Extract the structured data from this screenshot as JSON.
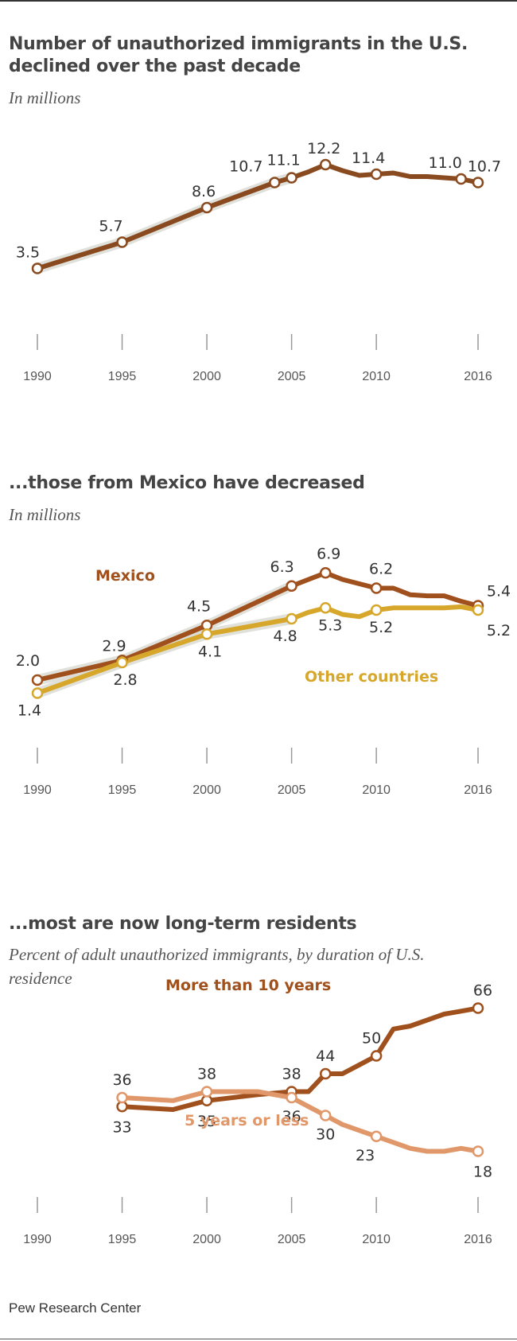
{
  "source": "Pew Research Center",
  "chart_data": [
    {
      "type": "line",
      "title": "Number of unauthorized immigrants in the U.S. declined over the past decade",
      "subtitle": "In millions",
      "x_ticks": [
        "1990",
        "1995",
        "2000",
        "2005",
        "2010",
        "2016"
      ],
      "xlim": [
        1990,
        2016
      ],
      "ylim": [
        0,
        14
      ],
      "series": [
        {
          "color": "#8a4a1f",
          "points": [
            {
              "x": 1990,
              "y": 3.5,
              "label": "3.5",
              "marker": true
            },
            {
              "x": 1995,
              "y": 5.7,
              "label": "5.7",
              "marker": true
            },
            {
              "x": 2000,
              "y": 8.6,
              "label": "8.6",
              "marker": true
            },
            {
              "x": 2004,
              "y": 10.7,
              "label": "10.7",
              "marker": true
            },
            {
              "x": 2005,
              "y": 11.1,
              "label": "11.1",
              "marker": true
            },
            {
              "x": 2006,
              "y": 11.6,
              "marker": false
            },
            {
              "x": 2007,
              "y": 12.2,
              "label": "12.2",
              "marker": true
            },
            {
              "x": 2008,
              "y": 11.7,
              "marker": false
            },
            {
              "x": 2009,
              "y": 11.3,
              "marker": false
            },
            {
              "x": 2010,
              "y": 11.4,
              "label": "11.4",
              "marker": true
            },
            {
              "x": 2011,
              "y": 11.5,
              "marker": false
            },
            {
              "x": 2012,
              "y": 11.2,
              "marker": false
            },
            {
              "x": 2013,
              "y": 11.2,
              "marker": false
            },
            {
              "x": 2014,
              "y": 11.1,
              "marker": false
            },
            {
              "x": 2015,
              "y": 11.0,
              "label": "11.0",
              "marker": true
            },
            {
              "x": 2016,
              "y": 10.7,
              "label": "10.7",
              "marker": true
            }
          ]
        }
      ]
    },
    {
      "type": "line",
      "title": "...those from Mexico have decreased",
      "subtitle": "In millions",
      "x_ticks": [
        "1990",
        "1995",
        "2000",
        "2005",
        "2010",
        "2016"
      ],
      "xlim": [
        1990,
        2016
      ],
      "ylim": [
        0,
        8
      ],
      "series": [
        {
          "name": "Mexico",
          "color": "#a0501c",
          "points": [
            {
              "x": 1990,
              "y": 2.0,
              "label": "2.0",
              "marker": true
            },
            {
              "x": 1995,
              "y": 2.9,
              "label": "2.9",
              "marker": true
            },
            {
              "x": 2000,
              "y": 4.5,
              "label": "4.5",
              "marker": true
            },
            {
              "x": 2005,
              "y": 6.3,
              "label": "6.3",
              "marker": true
            },
            {
              "x": 2006,
              "y": 6.6,
              "marker": false
            },
            {
              "x": 2007,
              "y": 6.9,
              "label": "6.9",
              "marker": true
            },
            {
              "x": 2008,
              "y": 6.6,
              "marker": false
            },
            {
              "x": 2009,
              "y": 6.4,
              "marker": false
            },
            {
              "x": 2010,
              "y": 6.2,
              "label": "6.2",
              "marker": true
            },
            {
              "x": 2011,
              "y": 6.2,
              "marker": false
            },
            {
              "x": 2012,
              "y": 5.9,
              "marker": false
            },
            {
              "x": 2013,
              "y": 5.85,
              "marker": false
            },
            {
              "x": 2014,
              "y": 5.85,
              "marker": false
            },
            {
              "x": 2015,
              "y": 5.6,
              "marker": false
            },
            {
              "x": 2016,
              "y": 5.4,
              "label": "5.4",
              "marker": true
            }
          ]
        },
        {
          "name": "Other countries",
          "color": "#d6a72a",
          "points": [
            {
              "x": 1990,
              "y": 1.4,
              "label": "1.4",
              "marker": true
            },
            {
              "x": 1995,
              "y": 2.8,
              "label": "2.8",
              "marker": true
            },
            {
              "x": 2000,
              "y": 4.1,
              "label": "4.1",
              "marker": true
            },
            {
              "x": 2005,
              "y": 4.8,
              "label": "4.8",
              "marker": true
            },
            {
              "x": 2006,
              "y": 5.1,
              "marker": false
            },
            {
              "x": 2007,
              "y": 5.3,
              "label": "5.3",
              "marker": true
            },
            {
              "x": 2008,
              "y": 5.0,
              "marker": false
            },
            {
              "x": 2009,
              "y": 4.9,
              "marker": false
            },
            {
              "x": 2010,
              "y": 5.2,
              "label": "5.2",
              "marker": true
            },
            {
              "x": 2011,
              "y": 5.3,
              "marker": false
            },
            {
              "x": 2012,
              "y": 5.3,
              "marker": false
            },
            {
              "x": 2013,
              "y": 5.3,
              "marker": false
            },
            {
              "x": 2014,
              "y": 5.3,
              "marker": false
            },
            {
              "x": 2015,
              "y": 5.35,
              "marker": false
            },
            {
              "x": 2016,
              "y": 5.2,
              "label": "5.2",
              "marker": true
            }
          ]
        }
      ]
    },
    {
      "type": "line",
      "title": "...most are now long-term residents",
      "subtitle": "Percent of adult unauthorized immigrants, by duration of U.S. residence",
      "x_ticks": [
        "1990",
        "1995",
        "2000",
        "2005",
        "2010",
        "2016"
      ],
      "xlim": [
        1990,
        2016
      ],
      "ylim": [
        0,
        80
      ],
      "series": [
        {
          "name": "More than 10 years",
          "color": "#a0501c",
          "points": [
            {
              "x": 1995,
              "y": 33,
              "label": "33",
              "marker": true
            },
            {
              "x": 1998,
              "y": 32,
              "marker": false
            },
            {
              "x": 2000,
              "y": 35,
              "label": "35",
              "marker": true
            },
            {
              "x": 2003,
              "y": 37,
              "marker": false
            },
            {
              "x": 2005,
              "y": 38,
              "label": "38",
              "marker": true
            },
            {
              "x": 2006,
              "y": 38,
              "marker": false
            },
            {
              "x": 2007,
              "y": 44,
              "label": "44",
              "marker": true
            },
            {
              "x": 2008,
              "y": 44,
              "marker": false
            },
            {
              "x": 2009,
              "y": 47,
              "marker": false
            },
            {
              "x": 2010,
              "y": 50,
              "label": "50",
              "marker": true
            },
            {
              "x": 2011,
              "y": 59,
              "marker": false
            },
            {
              "x": 2012,
              "y": 60,
              "marker": false
            },
            {
              "x": 2013,
              "y": 62,
              "marker": false
            },
            {
              "x": 2014,
              "y": 64,
              "marker": false
            },
            {
              "x": 2015,
              "y": 65,
              "marker": false
            },
            {
              "x": 2016,
              "y": 66,
              "label": "66",
              "marker": true
            }
          ]
        },
        {
          "name": "5 years or less",
          "color": "#e0976a",
          "points": [
            {
              "x": 1995,
              "y": 36,
              "label": "36",
              "marker": true
            },
            {
              "x": 1998,
              "y": 35,
              "marker": false
            },
            {
              "x": 2000,
              "y": 38,
              "label": "38",
              "marker": true
            },
            {
              "x": 2003,
              "y": 38,
              "marker": false
            },
            {
              "x": 2004,
              "y": 37,
              "marker": false
            },
            {
              "x": 2005,
              "y": 36,
              "label": "36",
              "marker": true
            },
            {
              "x": 2006,
              "y": 33,
              "marker": false
            },
            {
              "x": 2007,
              "y": 30,
              "label": "30",
              "marker": true
            },
            {
              "x": 2008,
              "y": 27,
              "marker": false
            },
            {
              "x": 2009,
              "y": 25,
              "marker": false
            },
            {
              "x": 2010,
              "y": 23,
              "label": "23",
              "marker": true
            },
            {
              "x": 2011,
              "y": 21,
              "marker": false
            },
            {
              "x": 2012,
              "y": 19,
              "marker": false
            },
            {
              "x": 2013,
              "y": 18,
              "marker": false
            },
            {
              "x": 2014,
              "y": 18,
              "marker": false
            },
            {
              "x": 2015,
              "y": 19,
              "marker": false
            },
            {
              "x": 2016,
              "y": 18,
              "label": "18",
              "marker": true
            }
          ]
        }
      ]
    }
  ]
}
